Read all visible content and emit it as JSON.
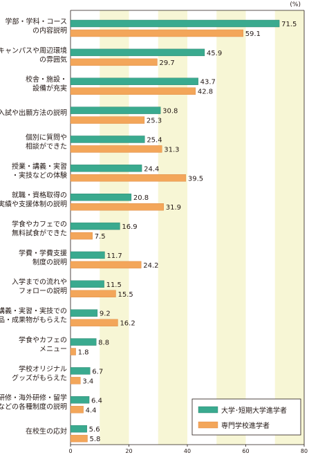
{
  "chart_data": {
    "type": "bar",
    "orientation": "horizontal",
    "unit": "(%)",
    "xlim": [
      0,
      80
    ],
    "xticks": [
      "0",
      "20",
      "40",
      "60",
      "80"
    ],
    "categories": [
      [
        "学部・学科・コース",
        "の内容説明"
      ],
      [
        "キャンパスや周辺環境",
        "の雰囲気"
      ],
      [
        "校舎・施設・",
        "設備が充実"
      ],
      [
        "入試や出願方法の説明"
      ],
      [
        "個別に質問や",
        "相談ができた"
      ],
      [
        "授業・講義・実習",
        "・実技などの体験"
      ],
      [
        "就職・資格取得の",
        "実績や支援体制の説明"
      ],
      [
        "学食やカフェでの",
        "無料試食ができた"
      ],
      [
        "学費・学費支援",
        "制度の説明"
      ],
      [
        "入学までの流れや",
        "フォローの説明"
      ],
      [
        "授業・講義・実習・実技での",
        "作品・成果物がもらえた"
      ],
      [
        "学食やカフェの",
        "メニュー"
      ],
      [
        "学校オリジナル",
        "グッズがもらえた"
      ],
      [
        "企業研修・海外研修・留学",
        "などの各種制度の説明"
      ],
      [
        "在校生の応対"
      ]
    ],
    "series": [
      {
        "name": "大学･短期大学進学者",
        "color": "#3aaa8f",
        "values": [
          71.5,
          45.9,
          43.7,
          30.8,
          25.4,
          24.4,
          20.8,
          16.9,
          11.7,
          11.5,
          9.2,
          8.8,
          6.7,
          6.4,
          5.6
        ]
      },
      {
        "name": "専門学校進学者",
        "color": "#f3a65a",
        "values": [
          59.1,
          29.7,
          42.8,
          25.3,
          31.3,
          39.5,
          31.9,
          7.5,
          24.2,
          15.5,
          16.2,
          1.8,
          3.4,
          4.4,
          5.8
        ]
      }
    ],
    "value_labels": [
      [
        "71.5",
        "45.9",
        "43.7",
        "30.8",
        "25.4",
        "24.4",
        "20.8",
        "16.9",
        "11.7",
        "11.5",
        "9.2",
        "8.8",
        "6.7",
        "6.4",
        "5.6"
      ],
      [
        "59.1",
        "29.7",
        "42.8",
        "25.3",
        "31.3",
        "39.5",
        "31.9",
        "7.5",
        "24.2",
        "15.5",
        "16.2",
        "1.8",
        "3.4",
        "4.4",
        "5.8"
      ]
    ],
    "legend_position": "bottom-right",
    "band_color": "#f7f6d5"
  }
}
